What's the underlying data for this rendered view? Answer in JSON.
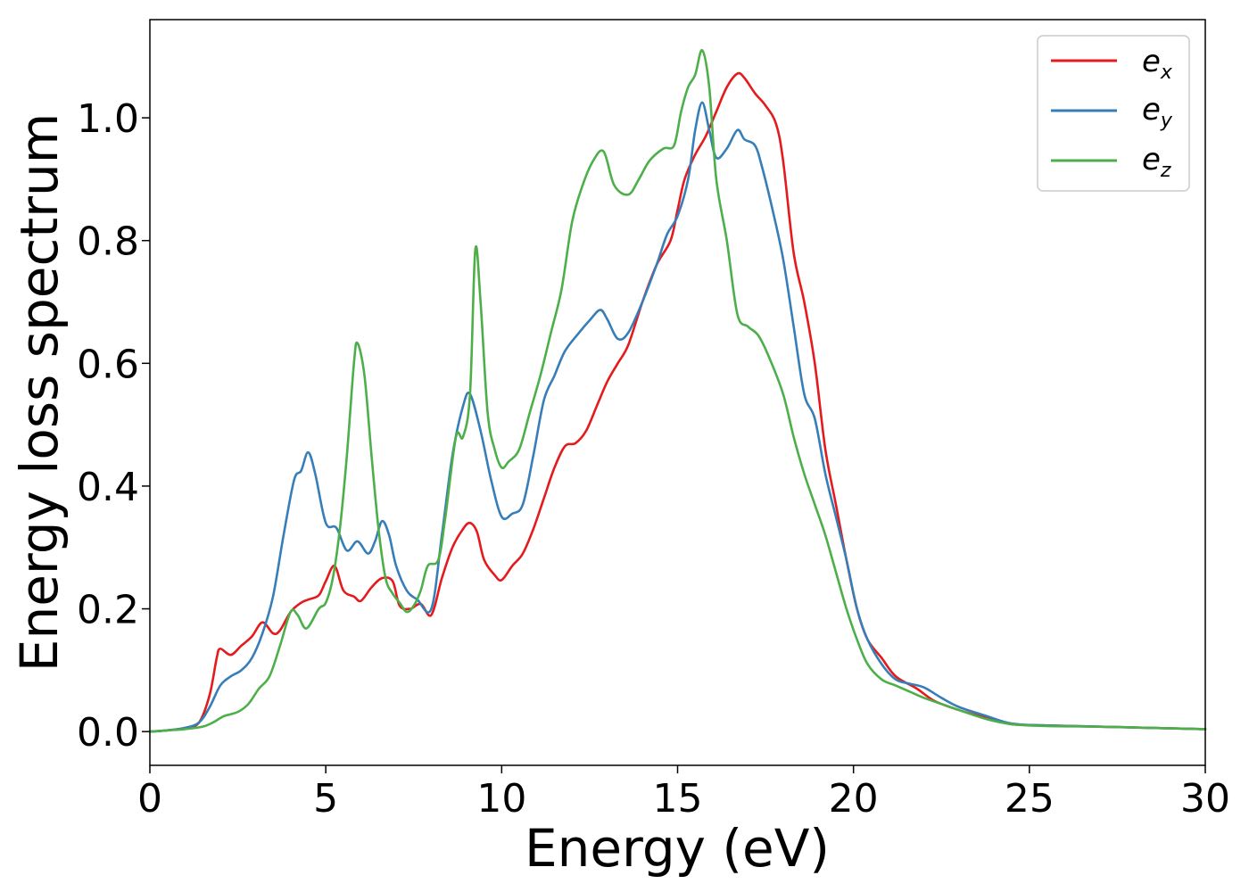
{
  "chart_data": {
    "type": "line",
    "xlabel": "Energy (eV)",
    "ylabel": "Energy loss spectrum",
    "xlim": [
      0,
      30
    ],
    "ylim": [
      -0.055,
      1.16
    ],
    "xticks": [
      0,
      5,
      10,
      15,
      20,
      25,
      30
    ],
    "xtick_labels": [
      "0",
      "5",
      "10",
      "15",
      "20",
      "25",
      "30"
    ],
    "yticks": [
      0.0,
      0.2,
      0.4,
      0.6,
      0.8,
      1.0
    ],
    "ytick_labels": [
      "0.0",
      "0.2",
      "0.4",
      "0.6",
      "0.8",
      "1.0"
    ],
    "grid": false,
    "legend_position": "top-right",
    "series": [
      {
        "name": "e_x",
        "label_main": "e",
        "label_sub": "x",
        "color": "#e41a1c",
        "points": [
          [
            0,
            0
          ],
          [
            0.5,
            0.002
          ],
          [
            1,
            0.006
          ],
          [
            1.4,
            0.015
          ],
          [
            1.7,
            0.06
          ],
          [
            1.9,
            0.12
          ],
          [
            2.0,
            0.135
          ],
          [
            2.3,
            0.125
          ],
          [
            2.6,
            0.14
          ],
          [
            2.9,
            0.155
          ],
          [
            3.2,
            0.178
          ],
          [
            3.5,
            0.16
          ],
          [
            3.7,
            0.165
          ],
          [
            4.0,
            0.195
          ],
          [
            4.3,
            0.21
          ],
          [
            4.5,
            0.215
          ],
          [
            4.8,
            0.222
          ],
          [
            5.0,
            0.245
          ],
          [
            5.25,
            0.27
          ],
          [
            5.5,
            0.23
          ],
          [
            5.8,
            0.22
          ],
          [
            6.0,
            0.213
          ],
          [
            6.3,
            0.235
          ],
          [
            6.6,
            0.25
          ],
          [
            6.9,
            0.245
          ],
          [
            7.1,
            0.205
          ],
          [
            7.4,
            0.2
          ],
          [
            7.7,
            0.208
          ],
          [
            8.0,
            0.19
          ],
          [
            8.3,
            0.25
          ],
          [
            8.6,
            0.3
          ],
          [
            8.9,
            0.33
          ],
          [
            9.1,
            0.34
          ],
          [
            9.3,
            0.325
          ],
          [
            9.5,
            0.28
          ],
          [
            9.8,
            0.255
          ],
          [
            10.0,
            0.247
          ],
          [
            10.3,
            0.27
          ],
          [
            10.6,
            0.29
          ],
          [
            10.9,
            0.33
          ],
          [
            11.2,
            0.38
          ],
          [
            11.5,
            0.43
          ],
          [
            11.8,
            0.465
          ],
          [
            12.1,
            0.47
          ],
          [
            12.4,
            0.49
          ],
          [
            12.7,
            0.53
          ],
          [
            13.0,
            0.57
          ],
          [
            13.3,
            0.6
          ],
          [
            13.6,
            0.63
          ],
          [
            14.0,
            0.7
          ],
          [
            14.4,
            0.76
          ],
          [
            14.8,
            0.8
          ],
          [
            15.0,
            0.85
          ],
          [
            15.2,
            0.9
          ],
          [
            15.5,
            0.94
          ],
          [
            15.8,
            0.97
          ],
          [
            16.1,
            1.01
          ],
          [
            16.4,
            1.05
          ],
          [
            16.7,
            1.072
          ],
          [
            16.9,
            1.065
          ],
          [
            17.2,
            1.04
          ],
          [
            17.5,
            1.02
          ],
          [
            17.8,
            0.99
          ],
          [
            18.0,
            0.93
          ],
          [
            18.3,
            0.78
          ],
          [
            18.6,
            0.7
          ],
          [
            18.9,
            0.6
          ],
          [
            19.2,
            0.46
          ],
          [
            19.5,
            0.37
          ],
          [
            19.8,
            0.28
          ],
          [
            20.1,
            0.2
          ],
          [
            20.4,
            0.15
          ],
          [
            20.8,
            0.12
          ],
          [
            21.2,
            0.09
          ],
          [
            21.8,
            0.07
          ],
          [
            22.3,
            0.05
          ],
          [
            23.0,
            0.035
          ],
          [
            23.8,
            0.022
          ],
          [
            24.5,
            0.012
          ],
          [
            25.5,
            0.01
          ],
          [
            27.0,
            0.008
          ],
          [
            28.5,
            0.006
          ],
          [
            30.0,
            0.004
          ]
        ]
      },
      {
        "name": "e_y",
        "label_main": "e",
        "label_sub": "y",
        "color": "#377eb8",
        "points": [
          [
            0,
            0
          ],
          [
            0.5,
            0.002
          ],
          [
            1,
            0.006
          ],
          [
            1.4,
            0.015
          ],
          [
            1.7,
            0.04
          ],
          [
            2.0,
            0.075
          ],
          [
            2.3,
            0.09
          ],
          [
            2.6,
            0.1
          ],
          [
            2.9,
            0.12
          ],
          [
            3.2,
            0.16
          ],
          [
            3.5,
            0.22
          ],
          [
            3.8,
            0.32
          ],
          [
            4.1,
            0.41
          ],
          [
            4.3,
            0.425
          ],
          [
            4.5,
            0.455
          ],
          [
            4.7,
            0.42
          ],
          [
            5.0,
            0.34
          ],
          [
            5.3,
            0.332
          ],
          [
            5.6,
            0.295
          ],
          [
            5.9,
            0.31
          ],
          [
            6.2,
            0.29
          ],
          [
            6.4,
            0.31
          ],
          [
            6.6,
            0.343
          ],
          [
            6.8,
            0.32
          ],
          [
            7.0,
            0.27
          ],
          [
            7.3,
            0.23
          ],
          [
            7.6,
            0.215
          ],
          [
            8.0,
            0.2
          ],
          [
            8.3,
            0.32
          ],
          [
            8.6,
            0.45
          ],
          [
            8.9,
            0.53
          ],
          [
            9.1,
            0.55
          ],
          [
            9.4,
            0.49
          ],
          [
            9.7,
            0.41
          ],
          [
            10.0,
            0.35
          ],
          [
            10.3,
            0.355
          ],
          [
            10.6,
            0.37
          ],
          [
            10.9,
            0.45
          ],
          [
            11.2,
            0.54
          ],
          [
            11.5,
            0.58
          ],
          [
            11.8,
            0.62
          ],
          [
            12.2,
            0.65
          ],
          [
            12.5,
            0.67
          ],
          [
            12.8,
            0.687
          ],
          [
            13.0,
            0.672
          ],
          [
            13.3,
            0.64
          ],
          [
            13.6,
            0.65
          ],
          [
            14.0,
            0.7
          ],
          [
            14.4,
            0.76
          ],
          [
            14.7,
            0.81
          ],
          [
            15.0,
            0.84
          ],
          [
            15.3,
            0.9
          ],
          [
            15.5,
            0.98
          ],
          [
            15.7,
            1.025
          ],
          [
            15.9,
            0.98
          ],
          [
            16.1,
            0.935
          ],
          [
            16.4,
            0.95
          ],
          [
            16.7,
            0.98
          ],
          [
            16.9,
            0.965
          ],
          [
            17.2,
            0.955
          ],
          [
            17.4,
            0.92
          ],
          [
            17.7,
            0.85
          ],
          [
            18.0,
            0.77
          ],
          [
            18.3,
            0.66
          ],
          [
            18.6,
            0.55
          ],
          [
            18.9,
            0.51
          ],
          [
            19.2,
            0.42
          ],
          [
            19.5,
            0.35
          ],
          [
            19.8,
            0.28
          ],
          [
            20.1,
            0.2
          ],
          [
            20.4,
            0.15
          ],
          [
            20.8,
            0.11
          ],
          [
            21.2,
            0.085
          ],
          [
            21.6,
            0.078
          ],
          [
            22.0,
            0.072
          ],
          [
            22.5,
            0.055
          ],
          [
            23.0,
            0.04
          ],
          [
            23.8,
            0.025
          ],
          [
            24.5,
            0.013
          ],
          [
            25.5,
            0.01
          ],
          [
            27.0,
            0.008
          ],
          [
            28.5,
            0.006
          ],
          [
            30.0,
            0.004
          ]
        ]
      },
      {
        "name": "e_z",
        "label_main": "e",
        "label_sub": "z",
        "color": "#4daf4a",
        "points": [
          [
            0,
            0
          ],
          [
            0.5,
            0.002
          ],
          [
            1,
            0.004
          ],
          [
            1.5,
            0.008
          ],
          [
            1.8,
            0.015
          ],
          [
            2.1,
            0.025
          ],
          [
            2.5,
            0.032
          ],
          [
            2.8,
            0.045
          ],
          [
            3.1,
            0.07
          ],
          [
            3.4,
            0.09
          ],
          [
            3.7,
            0.14
          ],
          [
            4.0,
            0.195
          ],
          [
            4.2,
            0.19
          ],
          [
            4.45,
            0.168
          ],
          [
            4.8,
            0.2
          ],
          [
            5.0,
            0.21
          ],
          [
            5.2,
            0.25
          ],
          [
            5.4,
            0.33
          ],
          [
            5.6,
            0.45
          ],
          [
            5.8,
            0.6
          ],
          [
            5.9,
            0.633
          ],
          [
            6.1,
            0.58
          ],
          [
            6.3,
            0.45
          ],
          [
            6.5,
            0.33
          ],
          [
            6.7,
            0.25
          ],
          [
            6.9,
            0.225
          ],
          [
            7.1,
            0.21
          ],
          [
            7.3,
            0.195
          ],
          [
            7.5,
            0.205
          ],
          [
            7.7,
            0.23
          ],
          [
            7.9,
            0.27
          ],
          [
            8.2,
            0.28
          ],
          [
            8.4,
            0.35
          ],
          [
            8.7,
            0.48
          ],
          [
            8.9,
            0.48
          ],
          [
            9.1,
            0.55
          ],
          [
            9.25,
            0.785
          ],
          [
            9.4,
            0.7
          ],
          [
            9.6,
            0.52
          ],
          [
            9.8,
            0.46
          ],
          [
            10.0,
            0.43
          ],
          [
            10.2,
            0.44
          ],
          [
            10.5,
            0.46
          ],
          [
            10.8,
            0.52
          ],
          [
            11.1,
            0.58
          ],
          [
            11.4,
            0.65
          ],
          [
            11.7,
            0.72
          ],
          [
            12.0,
            0.83
          ],
          [
            12.3,
            0.89
          ],
          [
            12.6,
            0.93
          ],
          [
            12.9,
            0.945
          ],
          [
            13.2,
            0.89
          ],
          [
            13.6,
            0.875
          ],
          [
            13.9,
            0.9
          ],
          [
            14.2,
            0.93
          ],
          [
            14.6,
            0.95
          ],
          [
            14.9,
            0.955
          ],
          [
            15.1,
            1.01
          ],
          [
            15.3,
            1.05
          ],
          [
            15.5,
            1.07
          ],
          [
            15.7,
            1.11
          ],
          [
            15.9,
            1.05
          ],
          [
            16.1,
            0.9
          ],
          [
            16.4,
            0.8
          ],
          [
            16.7,
            0.68
          ],
          [
            17.0,
            0.66
          ],
          [
            17.3,
            0.645
          ],
          [
            17.6,
            0.61
          ],
          [
            18.0,
            0.55
          ],
          [
            18.3,
            0.48
          ],
          [
            18.6,
            0.42
          ],
          [
            18.9,
            0.37
          ],
          [
            19.2,
            0.32
          ],
          [
            19.5,
            0.26
          ],
          [
            19.8,
            0.2
          ],
          [
            20.1,
            0.15
          ],
          [
            20.4,
            0.11
          ],
          [
            20.8,
            0.085
          ],
          [
            21.2,
            0.075
          ],
          [
            21.6,
            0.065
          ],
          [
            22.0,
            0.055
          ],
          [
            22.5,
            0.045
          ],
          [
            23.0,
            0.035
          ],
          [
            23.8,
            0.02
          ],
          [
            24.5,
            0.012
          ],
          [
            25.5,
            0.009
          ],
          [
            27.0,
            0.008
          ],
          [
            28.5,
            0.006
          ],
          [
            30.0,
            0.004
          ]
        ]
      }
    ]
  }
}
